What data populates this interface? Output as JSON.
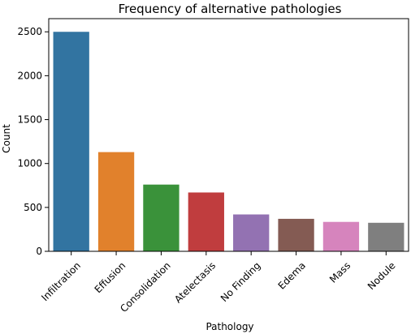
{
  "chart_data": {
    "type": "bar",
    "title": "Frequency of alternative pathologies",
    "xlabel": "Pathology",
    "ylabel": "Count",
    "categories": [
      "Infiltration",
      "Effusion",
      "Consolidation",
      "Atelectasis",
      "No Finding",
      "Edema",
      "Mass",
      "Nodule"
    ],
    "values": [
      2500,
      1130,
      760,
      670,
      420,
      370,
      335,
      325
    ],
    "colors": [
      "#3274a1",
      "#e1812c",
      "#3a923a",
      "#c03d3e",
      "#9372b2",
      "#845b53",
      "#d684bd",
      "#7f7f7f"
    ],
    "ylim": [
      0,
      2650
    ],
    "yticks": [
      0,
      500,
      1000,
      1500,
      2000,
      2500
    ],
    "grid": false,
    "legend": "none"
  }
}
